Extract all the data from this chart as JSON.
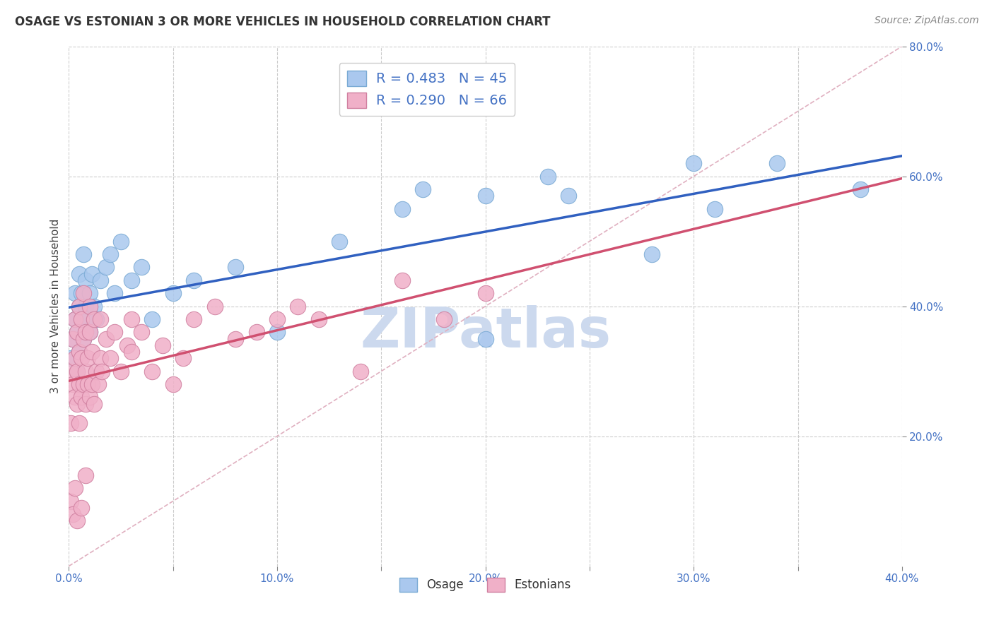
{
  "title": "OSAGE VS ESTONIAN 3 OR MORE VEHICLES IN HOUSEHOLD CORRELATION CHART",
  "source_text": "Source: ZipAtlas.com",
  "ylabel": "3 or more Vehicles in Household",
  "xlim": [
    0.0,
    0.4
  ],
  "ylim": [
    0.0,
    0.8
  ],
  "xticks": [
    0.0,
    0.05,
    0.1,
    0.15,
    0.2,
    0.25,
    0.3,
    0.35,
    0.4
  ],
  "xticklabels": [
    "0.0%",
    "",
    "10.0%",
    "",
    "20.0%",
    "",
    "30.0%",
    "",
    "40.0%"
  ],
  "yticks_right": [
    0.2,
    0.4,
    0.6,
    0.8
  ],
  "yticklabels_right": [
    "20.0%",
    "40.0%",
    "60.0%",
    "80.0%"
  ],
  "grid_yticks": [
    0.2,
    0.4,
    0.6,
    0.8
  ],
  "grid_color": "#cccccc",
  "background_color": "#ffffff",
  "watermark": "ZIPatlas",
  "watermark_color": "#ccd9ee",
  "osage_color": "#aac8ee",
  "osage_edge_color": "#7aaad4",
  "estonian_color": "#f0b0c8",
  "estonian_edge_color": "#d080a0",
  "osage_line_color": "#3060c0",
  "estonian_line_color": "#d05070",
  "ref_line_color": "#e0b0c0",
  "osage_R": 0.483,
  "osage_N": 45,
  "estonian_R": 0.29,
  "estonian_N": 66,
  "legend_color": "#4472C4",
  "osage_scatter_x": [
    0.001,
    0.002,
    0.003,
    0.003,
    0.004,
    0.004,
    0.005,
    0.005,
    0.005,
    0.006,
    0.006,
    0.007,
    0.007,
    0.008,
    0.008,
    0.009,
    0.01,
    0.01,
    0.011,
    0.012,
    0.013,
    0.015,
    0.018,
    0.02,
    0.022,
    0.025,
    0.03,
    0.035,
    0.04,
    0.05,
    0.06,
    0.08,
    0.1,
    0.13,
    0.16,
    0.2,
    0.24,
    0.28,
    0.31,
    0.34,
    0.17,
    0.2,
    0.23,
    0.3,
    0.38
  ],
  "osage_scatter_y": [
    0.32,
    0.35,
    0.38,
    0.42,
    0.3,
    0.36,
    0.33,
    0.4,
    0.45,
    0.38,
    0.42,
    0.35,
    0.48,
    0.4,
    0.44,
    0.38,
    0.42,
    0.36,
    0.45,
    0.4,
    0.38,
    0.44,
    0.46,
    0.48,
    0.42,
    0.5,
    0.44,
    0.46,
    0.38,
    0.42,
    0.44,
    0.46,
    0.36,
    0.5,
    0.55,
    0.35,
    0.57,
    0.48,
    0.55,
    0.62,
    0.58,
    0.57,
    0.6,
    0.62,
    0.58
  ],
  "estonian_scatter_x": [
    0.001,
    0.001,
    0.002,
    0.002,
    0.003,
    0.003,
    0.003,
    0.004,
    0.004,
    0.004,
    0.005,
    0.005,
    0.005,
    0.005,
    0.006,
    0.006,
    0.006,
    0.007,
    0.007,
    0.007,
    0.008,
    0.008,
    0.008,
    0.009,
    0.009,
    0.01,
    0.01,
    0.01,
    0.011,
    0.011,
    0.012,
    0.012,
    0.013,
    0.014,
    0.015,
    0.015,
    0.016,
    0.018,
    0.02,
    0.022,
    0.025,
    0.028,
    0.03,
    0.035,
    0.04,
    0.045,
    0.05,
    0.055,
    0.06,
    0.07,
    0.08,
    0.09,
    0.1,
    0.11,
    0.12,
    0.14,
    0.16,
    0.18,
    0.2,
    0.03,
    0.001,
    0.002,
    0.003,
    0.004,
    0.006,
    0.008
  ],
  "estonian_scatter_y": [
    0.3,
    0.22,
    0.28,
    0.35,
    0.32,
    0.26,
    0.38,
    0.25,
    0.3,
    0.36,
    0.28,
    0.33,
    0.22,
    0.4,
    0.26,
    0.32,
    0.38,
    0.28,
    0.35,
    0.42,
    0.25,
    0.3,
    0.36,
    0.28,
    0.32,
    0.26,
    0.36,
    0.4,
    0.28,
    0.33,
    0.25,
    0.38,
    0.3,
    0.28,
    0.32,
    0.38,
    0.3,
    0.35,
    0.32,
    0.36,
    0.3,
    0.34,
    0.38,
    0.36,
    0.3,
    0.34,
    0.28,
    0.32,
    0.38,
    0.4,
    0.35,
    0.36,
    0.38,
    0.4,
    0.38,
    0.3,
    0.44,
    0.38,
    0.42,
    0.33,
    0.1,
    0.08,
    0.12,
    0.07,
    0.09,
    0.14
  ]
}
